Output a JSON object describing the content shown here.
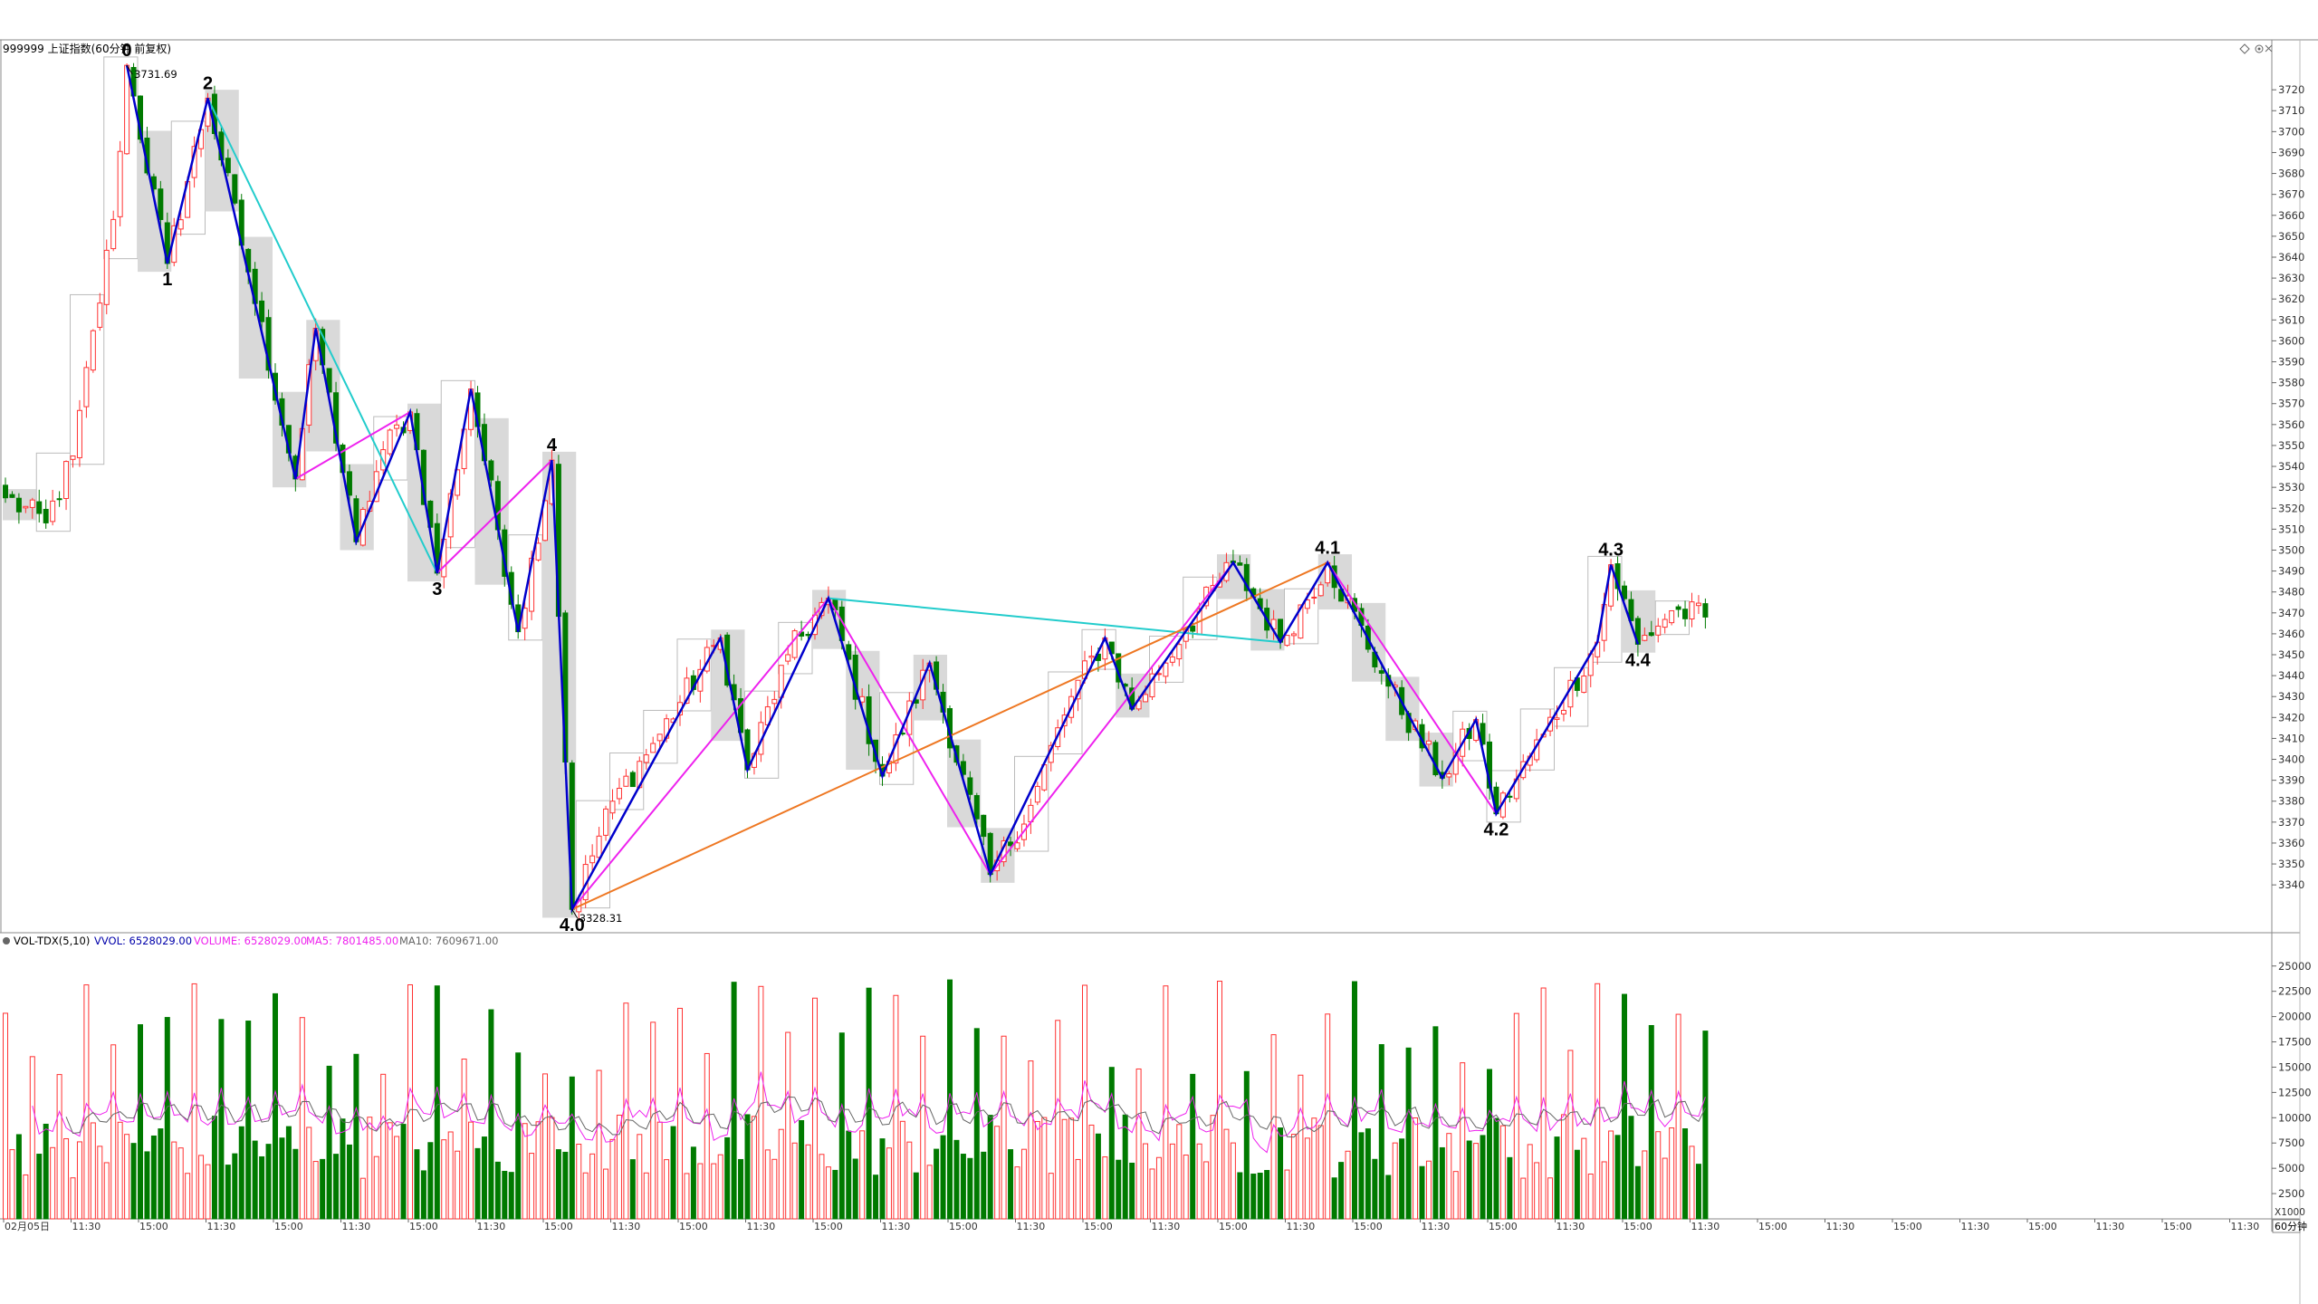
{
  "header": {
    "title": "999999 上证指数(60分钟 前复权)",
    "icons": [
      "diamond-icon",
      "settings-icon",
      "close-icon"
    ]
  },
  "indicator": {
    "name": "VOL-TDX(5,10)",
    "vvol": "VVOL: 6528029.00",
    "volume": "VOLUME: 6528029.00",
    "ma5": "MA5: 7801485.00",
    "ma10": "MA10: 7609671.00",
    "unit": "X1000"
  },
  "period_label": "60分钟",
  "colors": {
    "up": "#ff3232",
    "down": "#007a00",
    "zigzag": "#0000cc",
    "channel": "#ee22ee",
    "cyan": "#22cccc",
    "orange": "#ee7722",
    "ma5": "#ee22ee",
    "ma10": "#666666",
    "vvol": "#0000aa"
  },
  "chart_data": {
    "type": "candlestick",
    "title": "999999 上证指数(60分钟 前复权)",
    "price_axis": {
      "ticks": [
        3340,
        3350,
        3360,
        3370,
        3380,
        3390,
        3400,
        3410,
        3420,
        3430,
        3440,
        3450,
        3460,
        3470,
        3480,
        3490,
        3500,
        3510,
        3520,
        3530,
        3540,
        3550,
        3560,
        3570,
        3580,
        3590,
        3600,
        3610,
        3620,
        3630,
        3640,
        3650,
        3660,
        3670,
        3680,
        3690,
        3700,
        3710,
        3720
      ],
      "range": [
        3318,
        3743
      ]
    },
    "volume_axis": {
      "ticks": [
        2500,
        5000,
        7500,
        10000,
        12500,
        15000,
        17500,
        20000,
        22500,
        25000
      ],
      "range": [
        0,
        26500
      ]
    },
    "time_axis": [
      "02月05日",
      "11:30",
      "15:00",
      "11:30",
      "15:00",
      "11:30",
      "15:00",
      "11:30",
      "15:00",
      "11:30",
      "15:00",
      "11:30",
      "15:00",
      "11:30",
      "15:00",
      "11:30",
      "15:00",
      "11:30",
      "15:00",
      "11:30",
      "15:00",
      "11:30",
      "15:00",
      "11:30",
      "15:00",
      "11:30",
      "15:00",
      "11:30",
      "15:00",
      "11:30",
      "15:00",
      "11:30",
      "15:00",
      "11:30"
    ],
    "extremes": [
      {
        "label": "3731.69",
        "index": 18,
        "price": 3731.69
      },
      {
        "label": "3328.31",
        "index": 84,
        "price": 3328.31
      }
    ],
    "waves": [
      {
        "label": "0",
        "index": 18,
        "price": 3731.69
      },
      {
        "label": "1",
        "index": 24,
        "price": 3637
      },
      {
        "label": "2",
        "index": 30,
        "price": 3716
      },
      {
        "label": "",
        "index": 43,
        "price": 3534
      },
      {
        "label": "",
        "index": 46,
        "price": 3606
      },
      {
        "label": "",
        "index": 52,
        "price": 3504
      },
      {
        "label": "",
        "index": 60,
        "price": 3566
      },
      {
        "label": "3",
        "index": 64,
        "price": 3489
      },
      {
        "label": "",
        "index": 69,
        "price": 3577
      },
      {
        "label": "",
        "index": 76,
        "price": 3461
      },
      {
        "label": "4",
        "index": 81,
        "price": 3543
      },
      {
        "label": "4.0",
        "index": 84,
        "price": 3328.31
      },
      {
        "label": "",
        "index": 106,
        "price": 3458
      },
      {
        "label": "",
        "index": 110,
        "price": 3395
      },
      {
        "label": "",
        "index": 122,
        "price": 3477
      },
      {
        "label": "",
        "index": 130,
        "price": 3392
      },
      {
        "label": "",
        "index": 137,
        "price": 3446
      },
      {
        "label": "",
        "index": 146,
        "price": 3345
      },
      {
        "label": "",
        "index": 163,
        "price": 3458
      },
      {
        "label": "",
        "index": 167,
        "price": 3424
      },
      {
        "label": "",
        "index": 182,
        "price": 3494
      },
      {
        "label": "",
        "index": 189,
        "price": 3456
      },
      {
        "label": "4.1",
        "index": 196,
        "price": 3494
      },
      {
        "label": "",
        "index": 213,
        "price": 3391
      },
      {
        "label": "",
        "index": 218,
        "price": 3419
      },
      {
        "label": "4.2",
        "index": 221,
        "price": 3374
      },
      {
        "label": "",
        "index": 228,
        "price": 3412
      },
      {
        "label": "",
        "index": 236,
        "price": 3456
      },
      {
        "label": "4.3",
        "index": 238,
        "price": 3493
      },
      {
        "label": "4.4",
        "index": 242,
        "price": 3455
      }
    ],
    "channel_lines": [
      {
        "color": "cyan",
        "from": [
          30,
          3716
        ],
        "to": [
          64,
          3489
        ]
      },
      {
        "color": "magenta",
        "from": [
          43,
          3534
        ],
        "to": [
          60,
          3566
        ]
      },
      {
        "color": "magenta",
        "from": [
          64,
          3489
        ],
        "to": [
          81,
          3543
        ]
      },
      {
        "color": "magenta",
        "from": [
          84,
          3328.31
        ],
        "to": [
          122,
          3477
        ]
      },
      {
        "color": "magenta",
        "from": [
          122,
          3477
        ],
        "to": [
          146,
          3345
        ]
      },
      {
        "color": "magenta",
        "from": [
          146,
          3345
        ],
        "to": [
          182,
          3494
        ]
      },
      {
        "color": "cyan",
        "from": [
          122,
          3477
        ],
        "to": [
          189,
          3456
        ]
      },
      {
        "color": "orange",
        "from": [
          84,
          3328.31
        ],
        "to": [
          196,
          3494
        ]
      },
      {
        "color": "magenta",
        "from": [
          196,
          3494
        ],
        "to": [
          221,
          3374
        ]
      }
    ],
    "anchors": [
      [
        0,
        3525
      ],
      [
        6,
        3513
      ],
      [
        10,
        3545
      ],
      [
        16,
        3658
      ],
      [
        18,
        3731.69
      ],
      [
        24,
        3637
      ],
      [
        30,
        3716
      ],
      [
        36,
        3633
      ],
      [
        43,
        3534
      ],
      [
        46,
        3606
      ],
      [
        52,
        3504
      ],
      [
        56,
        3548
      ],
      [
        60,
        3566
      ],
      [
        64,
        3489
      ],
      [
        69,
        3577
      ],
      [
        76,
        3461
      ],
      [
        81,
        3543
      ],
      [
        84,
        3328.31
      ],
      [
        90,
        3380
      ],
      [
        97,
        3412
      ],
      [
        106,
        3458
      ],
      [
        110,
        3395
      ],
      [
        116,
        3450
      ],
      [
        122,
        3477
      ],
      [
        130,
        3392
      ],
      [
        137,
        3446
      ],
      [
        146,
        3345
      ],
      [
        152,
        3378
      ],
      [
        158,
        3430
      ],
      [
        163,
        3458
      ],
      [
        167,
        3424
      ],
      [
        175,
        3462
      ],
      [
        182,
        3494
      ],
      [
        189,
        3456
      ],
      [
        196,
        3494
      ],
      [
        205,
        3435
      ],
      [
        213,
        3391
      ],
      [
        218,
        3419
      ],
      [
        221,
        3374
      ],
      [
        228,
        3412
      ],
      [
        236,
        3456
      ],
      [
        238,
        3493
      ],
      [
        242,
        3455
      ],
      [
        247,
        3471
      ],
      [
        252,
        3468
      ]
    ],
    "candle_count": 253
  }
}
